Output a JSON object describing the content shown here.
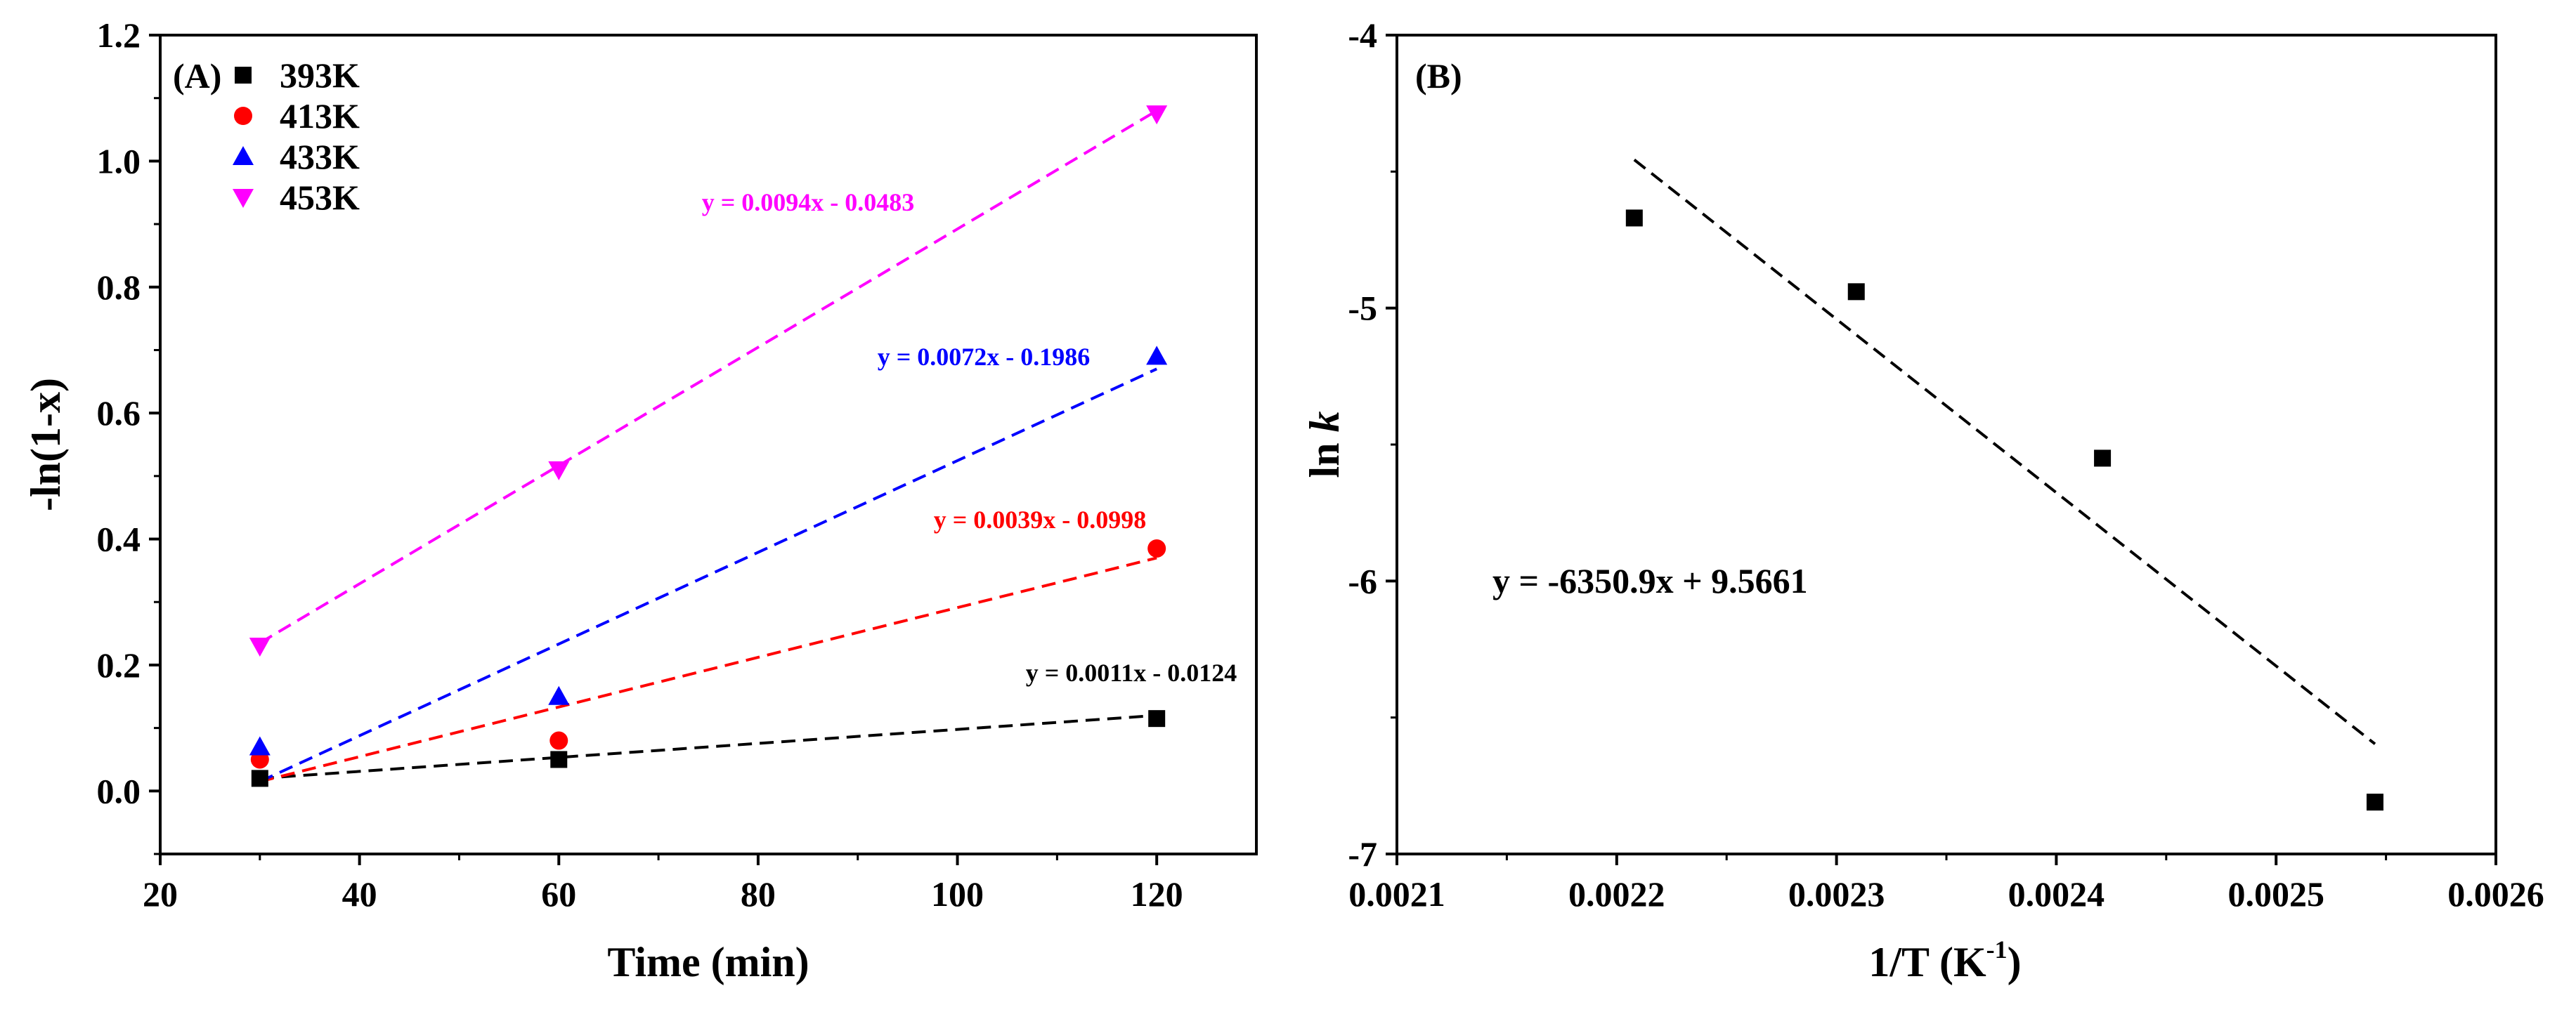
{
  "chart_data": [
    {
      "panel_label": "(A)",
      "type": "scatter",
      "xlabel": "Time (min)",
      "ylabel": "-ln(1-x)",
      "xlim": [
        20,
        130
      ],
      "ylim": [
        -0.1,
        1.2
      ],
      "xticks": [
        20,
        40,
        60,
        80,
        100,
        120
      ],
      "yticks": [
        0.0,
        0.2,
        0.4,
        0.6,
        0.8,
        1.0,
        1.2
      ],
      "legend_position": "top-left",
      "series": [
        {
          "name": "393K",
          "color": "#000000",
          "marker": "square",
          "x": [
            30,
            60,
            120
          ],
          "y": [
            0.02,
            0.05,
            0.115
          ],
          "fit": {
            "slope": 0.0011,
            "intercept": -0.0124,
            "label": "y = 0.0011x - 0.0124",
            "x_range": [
              30,
              120
            ],
            "y_range": [
              0.02,
              0.12
            ]
          }
        },
        {
          "name": "413K",
          "color": "#ff0000",
          "marker": "circle",
          "x": [
            30,
            60,
            120
          ],
          "y": [
            0.05,
            0.08,
            0.385
          ],
          "fit": {
            "slope": 0.0039,
            "intercept": -0.0998,
            "label": "y = 0.0039x - 0.0998",
            "x_range": [
              30,
              120
            ],
            "y_range": [
              0.015,
              0.37
            ]
          }
        },
        {
          "name": "433K",
          "color": "#0000ff",
          "marker": "triangle-up",
          "x": [
            30,
            60,
            120
          ],
          "y": [
            0.07,
            0.15,
            0.69
          ],
          "fit": {
            "slope": 0.0072,
            "intercept": -0.1986,
            "label": "y = 0.0072x - 0.1986",
            "x_range": [
              30,
              120
            ],
            "y_range": [
              0.015,
              0.67
            ]
          }
        },
        {
          "name": "453K",
          "color": "#ff00ff",
          "marker": "triangle-down",
          "x": [
            30,
            60,
            120
          ],
          "y": [
            0.23,
            0.51,
            1.075
          ],
          "fit": {
            "slope": 0.0094,
            "intercept": -0.0483,
            "label": "y = 0.0094x - 0.0483",
            "x_range": [
              30,
              120
            ],
            "y_range": [
              0.235,
              1.08
            ]
          }
        }
      ]
    },
    {
      "panel_label": "(B)",
      "type": "scatter",
      "xlabel": "1/T (K",
      "xlabel_sup": "-1",
      "xlabel_end": ")",
      "ylabel": "ln ",
      "ylabel_italic": "k",
      "xlim": [
        0.0021,
        0.0026
      ],
      "ylim": [
        -7,
        -4
      ],
      "xticks": [
        0.0021,
        0.0022,
        0.0023,
        0.0024,
        0.0025,
        0.0026
      ],
      "xtick_labels": [
        "0.0021",
        "0.0022",
        "0.0023",
        "0.0024",
        "0.0025",
        "0.0026"
      ],
      "yticks": [
        -7,
        -6,
        -5,
        -4
      ],
      "ytick_labels": [
        "-7",
        "-6",
        "-5",
        "-4"
      ],
      "series": [
        {
          "name": "ln k",
          "color": "#000000",
          "marker": "square",
          "x": [
            0.002208,
            0.002309,
            0.002421,
            0.002545
          ],
          "y": [
            -4.67,
            -4.94,
            -5.55,
            -6.81
          ]
        }
      ],
      "fit": {
        "slope": -6350.9,
        "intercept": 9.5661,
        "label": "y = -6350.9x + 9.5661",
        "x_range": [
          0.002208,
          0.002545
        ]
      }
    }
  ]
}
